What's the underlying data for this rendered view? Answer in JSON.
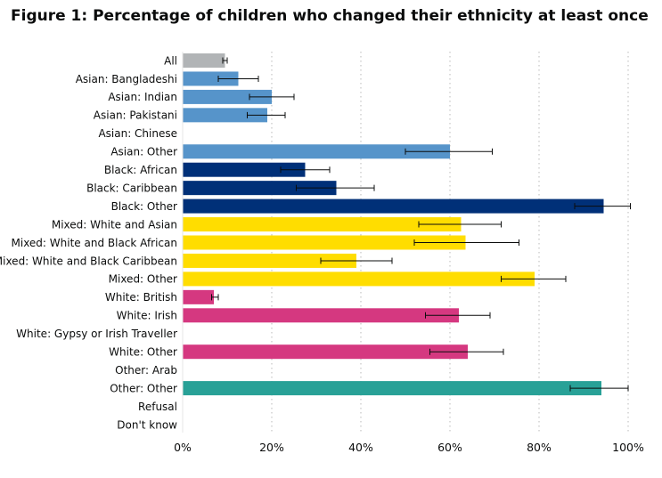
{
  "chart_data": {
    "type": "bar",
    "orientation": "horizontal",
    "title": "Figure 1: Percentage of children who changed their ethnicity at least once",
    "xlabel": "",
    "ylabel": "",
    "xlim": [
      0,
      100
    ],
    "x_ticks": [
      "0%",
      "20%",
      "40%",
      "60%",
      "80%",
      "100%"
    ],
    "grid": "vertical dotted",
    "legend": "none",
    "categories": [
      "All",
      "Asian: Bangladeshi",
      "Asian: Indian",
      "Asian: Pakistani",
      "Asian: Chinese",
      "Asian: Other",
      "Black: African",
      "Black: Caribbean",
      "Black: Other",
      "Mixed: White and Asian",
      "Mixed: White and Black African",
      "Mixed: White and Black Caribbean",
      "Mixed: Other",
      "White: British",
      "White: Irish",
      "White: Gypsy or Irish Traveller",
      "White: Other",
      "Other: Arab",
      "Other: Other",
      "Refusal",
      "Don't know"
    ],
    "values": [
      9.5,
      12.5,
      20,
      19,
      null,
      60,
      27.5,
      34.5,
      94.5,
      62.5,
      63.5,
      39,
      79,
      7,
      62,
      null,
      64,
      null,
      94,
      null,
      null
    ],
    "error_low": [
      9,
      8,
      15,
      14.5,
      null,
      50,
      22,
      25.5,
      88,
      53,
      52,
      31,
      71.5,
      6.5,
      54.5,
      null,
      55.5,
      null,
      87,
      null,
      null
    ],
    "error_high": [
      10,
      17,
      25,
      23,
      null,
      69.5,
      33,
      43,
      100.5,
      71.5,
      75.5,
      47,
      86,
      8,
      69,
      null,
      72,
      null,
      100,
      null,
      null
    ],
    "bar_colors": [
      "#b1b4b6",
      "#5694ca",
      "#5694ca",
      "#5694ca",
      "#5694ca",
      "#5694ca",
      "#003078",
      "#003078",
      "#003078",
      "#ffdd00",
      "#ffdd00",
      "#ffdd00",
      "#ffdd00",
      "#d53880",
      "#d53880",
      "#d53880",
      "#d53880",
      "#28a197",
      "#28a197",
      "#28a197",
      "#28a197"
    ]
  }
}
